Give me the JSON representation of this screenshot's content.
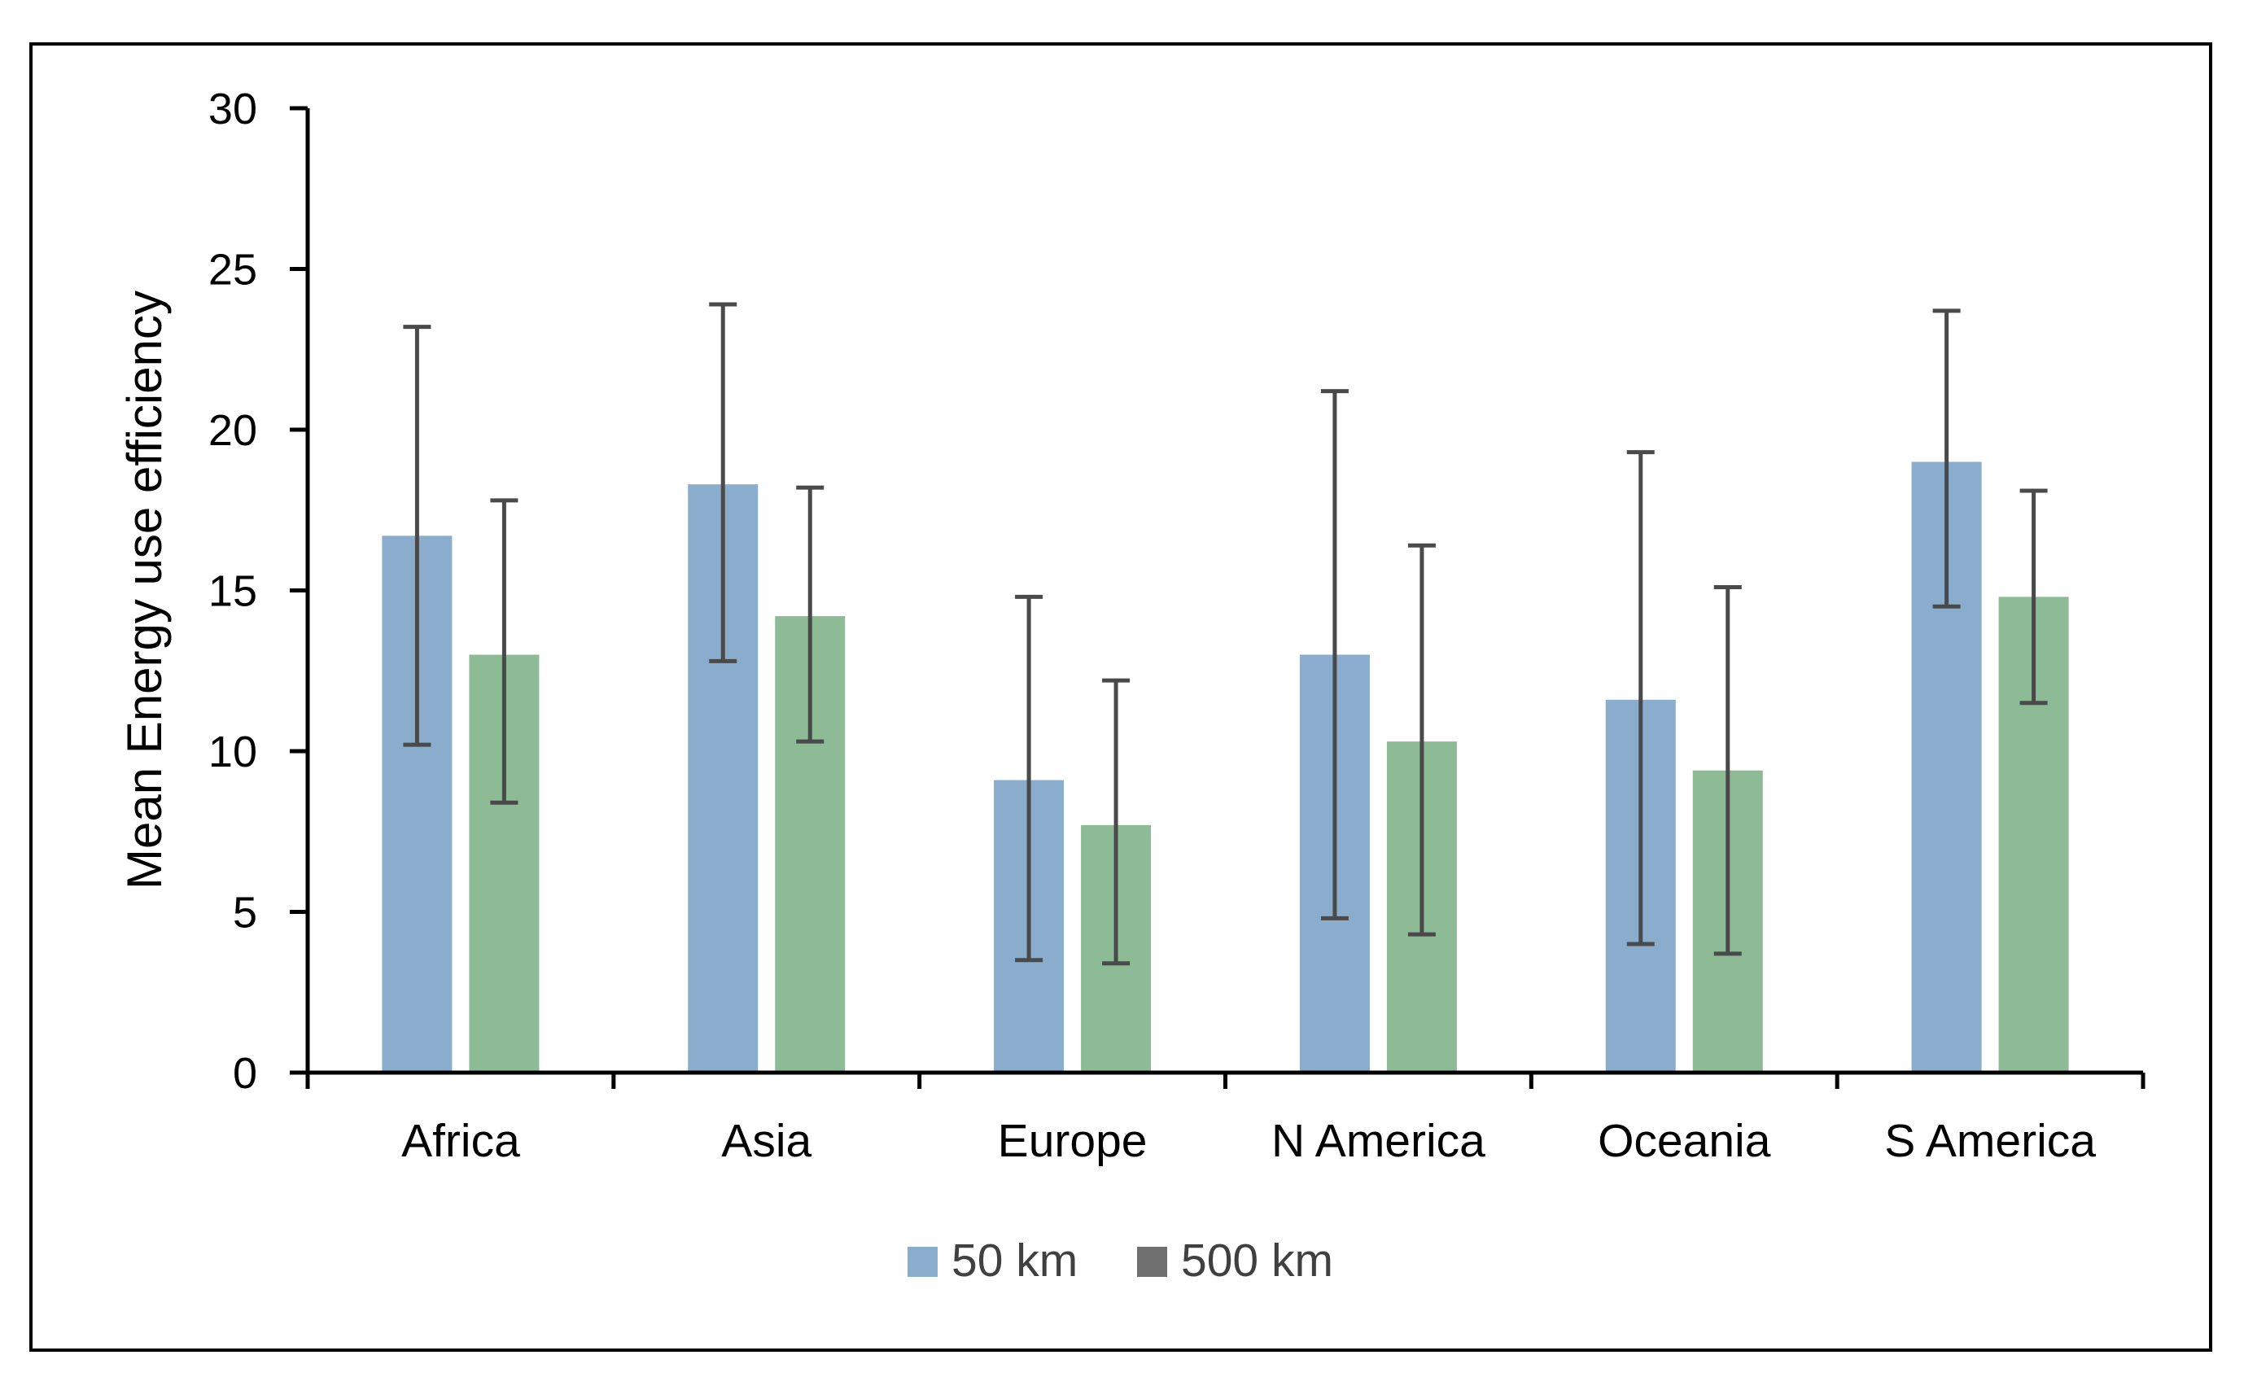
{
  "chart_data": {
    "type": "bar",
    "title": "",
    "xlabel": "",
    "ylabel": "Mean Energy use efficiency",
    "ylim": [
      0,
      30
    ],
    "yticks": [
      0,
      5,
      10,
      15,
      20,
      25,
      30
    ],
    "grid": false,
    "legend_position": "bottom-center",
    "categories": [
      "Africa",
      "Asia",
      "Europe",
      "N America",
      "Oceania",
      "S America"
    ],
    "series": [
      {
        "name": "50 km",
        "color": "#8aaccd",
        "values": [
          16.7,
          18.3,
          9.1,
          13.0,
          11.6,
          19.0
        ],
        "error_low": [
          10.2,
          12.8,
          3.5,
          4.8,
          4.0,
          14.5
        ],
        "error_high": [
          23.2,
          23.9,
          14.8,
          21.2,
          19.3,
          23.7
        ]
      },
      {
        "name": "500 km",
        "color": "#8cbb96",
        "legend_color": "#707070",
        "values": [
          13.0,
          14.2,
          7.7,
          10.3,
          9.4,
          14.8
        ],
        "error_low": [
          8.4,
          10.3,
          3.4,
          4.3,
          3.7,
          11.5
        ],
        "error_high": [
          17.8,
          18.2,
          12.2,
          16.4,
          15.1,
          18.1
        ]
      }
    ]
  }
}
